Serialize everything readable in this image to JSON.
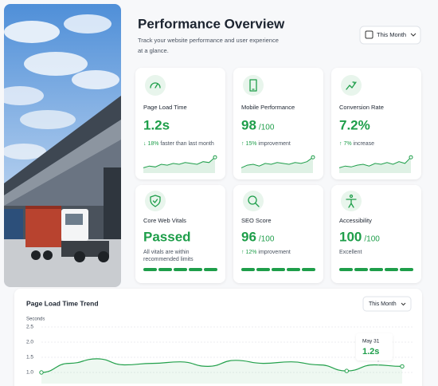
{
  "header": {
    "title": "Performance Overview",
    "subtitle_lines": [
      "Track your website performance and user experience",
      "at a glance."
    ],
    "period": "This Month"
  },
  "cards": [
    {
      "title": "Page Load Time",
      "value": "1.2s",
      "trend": "↓ 18%",
      "note": "faster than last month"
    },
    {
      "title": "Mobile Performance",
      "value": "98",
      "unit": "/100",
      "trend": "↑ 15%",
      "note": "improvement"
    },
    {
      "title": "Conversion Rate",
      "value": "7.2%",
      "trend": "↑ 7%",
      "note": "increase"
    },
    {
      "title": "Core Web Vitals",
      "value": "Passed",
      "note_lines": [
        "All vitals are within",
        "recommended limits"
      ]
    },
    {
      "title": "SEO Score",
      "value": "96",
      "unit": "/100",
      "trend": "↑ 12%",
      "note": "improvement"
    },
    {
      "title": "Accessibility",
      "value": "100",
      "unit": "/100",
      "note": "Excellent"
    }
  ],
  "trend_chart": {
    "type": "line",
    "title": "Page Load Time Trend",
    "period": "This Month",
    "y_label": "Seconds",
    "ylim": [
      1,
      2.5
    ],
    "yticks": [
      2.5,
      {
        "value": 2,
        "label": "2.0"
      },
      1.5,
      {
        "value": 1,
        "label": "1.0"
      }
    ],
    "values": [
      1.0,
      1.3,
      1.45,
      1.25,
      1.3,
      1.35,
      1.2,
      1.4,
      1.3,
      1.35,
      1.25,
      1.05,
      1.25,
      1.2
    ],
    "color": "#22a04b",
    "tooltip": {
      "date": "May 31",
      "label": "1.2s"
    }
  }
}
